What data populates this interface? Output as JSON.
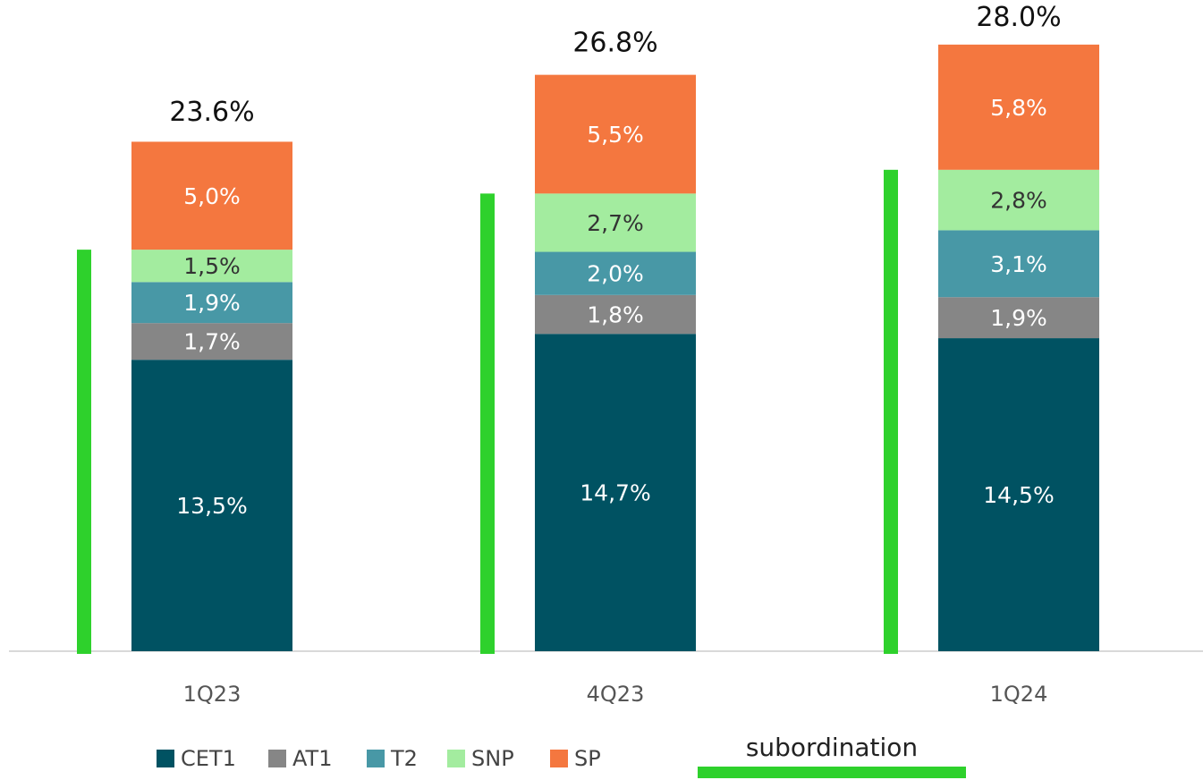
{
  "chart_data": {
    "type": "stacked_bar",
    "categories": [
      "1Q23",
      "4Q23",
      "1Q24"
    ],
    "series": [
      {
        "name": "CET1",
        "color": "#005262",
        "label_color": "#ffffff",
        "values": [
          13.5,
          14.7,
          14.5
        ],
        "value_labels": [
          "13,5%",
          "14,7%",
          "14,5%"
        ]
      },
      {
        "name": "AT1",
        "color": "#868686",
        "label_color": "#ffffff",
        "values": [
          1.7,
          1.8,
          1.9
        ],
        "value_labels": [
          "1,7%",
          "1,8%",
          "1,9%"
        ]
      },
      {
        "name": "T2",
        "color": "#4898a6",
        "label_color": "#ffffff",
        "values": [
          1.9,
          2.0,
          3.1
        ],
        "value_labels": [
          "1,9%",
          "2,0%",
          "3,1%"
        ]
      },
      {
        "name": "SNP",
        "color": "#a3ec9f",
        "label_color": "#333333",
        "values": [
          1.5,
          2.7,
          2.8
        ],
        "value_labels": [
          "1,5%",
          "2,7%",
          "2,8%"
        ]
      },
      {
        "name": "SP",
        "color": "#f4773f",
        "label_color": "#ffffff",
        "values": [
          5.0,
          5.5,
          5.8
        ],
        "value_labels": [
          "5,0%",
          "5,5%",
          "5,8%"
        ]
      }
    ],
    "totals": {
      "values": [
        23.6,
        26.8,
        28.0
      ],
      "value_labels": [
        "23.6%",
        "26.8%",
        "28.0%"
      ]
    },
    "subordination": {
      "name": "subordination",
      "color": "#2ed12c",
      "values": [
        18.6,
        21.2,
        22.3
      ]
    },
    "ylim": [
      0,
      30
    ]
  }
}
